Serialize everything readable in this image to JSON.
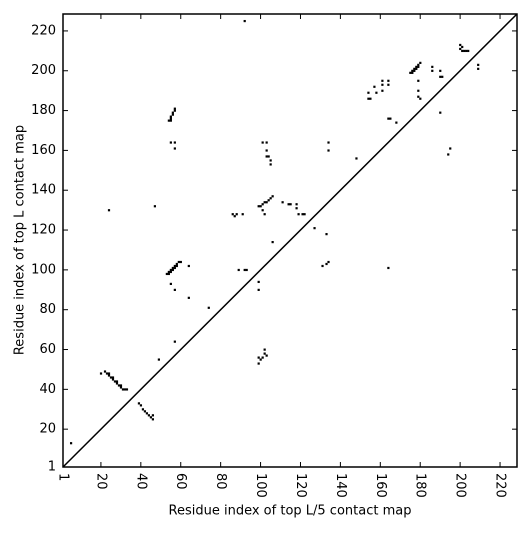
{
  "chart_data": {
    "type": "scatter",
    "xlabel": "Residue index of top L/5 contact map",
    "ylabel": "Residue index of top L contact map",
    "xlim": [
      1,
      228.5
    ],
    "ylim": [
      1,
      228.5
    ],
    "xticks": [
      1,
      20,
      40,
      60,
      80,
      100,
      120,
      140,
      160,
      180,
      200,
      220
    ],
    "yticks": [
      1,
      20,
      40,
      60,
      80,
      100,
      120,
      140,
      160,
      180,
      200,
      220
    ],
    "color": "#000000",
    "x": [
      5,
      24,
      47,
      54,
      55,
      55,
      56,
      56,
      57,
      57,
      55,
      55,
      57,
      57,
      53,
      54,
      55,
      56,
      57,
      58,
      59,
      60,
      54,
      55,
      56,
      57,
      58,
      55,
      57,
      64,
      64,
      57,
      49,
      74,
      86,
      87,
      88,
      91,
      89,
      92,
      93,
      99,
      99,
      92,
      99,
      100,
      101,
      102,
      103,
      104,
      105,
      106,
      102,
      101,
      101,
      103,
      103,
      103,
      104,
      105,
      105,
      106,
      111,
      114,
      115,
      118,
      118,
      119,
      121,
      122,
      127,
      131,
      133,
      134,
      133,
      134,
      134,
      148,
      154,
      154,
      155,
      157,
      158,
      161,
      161,
      161,
      164,
      164,
      175,
      176,
      177,
      178,
      179,
      180,
      176,
      177,
      178,
      179,
      179,
      179,
      180,
      179,
      186,
      186,
      190,
      191,
      190,
      200,
      200,
      201,
      202,
      203,
      201,
      204,
      209,
      209,
      20,
      22,
      23,
      24,
      25,
      26,
      27,
      28,
      29,
      30,
      31,
      32,
      33,
      24,
      26,
      28,
      30,
      39,
      40,
      41,
      42,
      43,
      44,
      45,
      46,
      46,
      99,
      100,
      99,
      101,
      102,
      102,
      103,
      164,
      165,
      168,
      164,
      190,
      194,
      195
    ],
    "y": [
      13,
      130,
      132,
      175,
      176,
      177,
      178,
      179,
      180,
      181,
      175,
      164,
      164,
      161,
      98,
      99,
      100,
      101,
      102,
      103,
      104,
      104,
      98,
      99,
      100,
      101,
      102,
      93,
      90,
      102,
      86,
      64,
      55,
      81,
      128,
      127,
      128,
      128,
      100,
      100,
      100,
      94,
      90,
      225,
      132,
      132,
      133,
      134,
      134,
      135,
      136,
      137,
      128,
      130,
      164,
      164,
      160,
      157,
      157,
      155,
      153,
      114,
      134,
      133,
      133,
      133,
      131,
      128,
      128,
      128,
      121,
      102,
      118,
      104,
      103,
      164,
      160,
      156,
      186,
      189,
      186,
      192,
      189,
      190,
      193,
      195,
      195,
      193,
      199,
      200,
      201,
      202,
      203,
      204,
      199,
      200,
      201,
      202,
      190,
      187,
      186,
      195,
      202,
      200,
      197,
      197,
      200,
      213,
      211,
      212,
      210,
      210,
      210,
      210,
      203,
      201,
      48,
      49,
      48,
      47,
      46,
      45,
      44,
      43,
      42,
      41,
      40,
      40,
      40,
      48,
      46,
      44,
      42,
      33,
      32,
      30,
      29,
      28,
      27,
      26,
      25,
      27,
      56,
      55,
      53,
      56,
      58,
      60,
      57,
      176,
      176,
      174,
      101,
      179,
      158,
      161
    ]
  }
}
